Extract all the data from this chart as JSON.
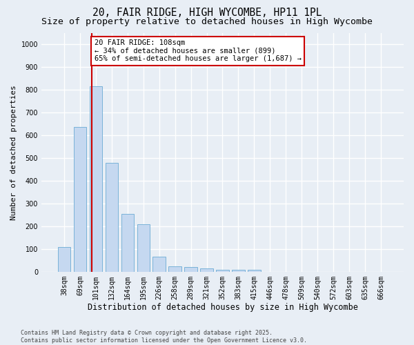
{
  "title": "20, FAIR RIDGE, HIGH WYCOMBE, HP11 1PL",
  "subtitle": "Size of property relative to detached houses in High Wycombe",
  "xlabel": "Distribution of detached houses by size in High Wycombe",
  "ylabel": "Number of detached properties",
  "categories": [
    "38sqm",
    "69sqm",
    "101sqm",
    "132sqm",
    "164sqm",
    "195sqm",
    "226sqm",
    "258sqm",
    "289sqm",
    "321sqm",
    "352sqm",
    "383sqm",
    "415sqm",
    "446sqm",
    "478sqm",
    "509sqm",
    "540sqm",
    "572sqm",
    "603sqm",
    "635sqm",
    "666sqm"
  ],
  "values": [
    110,
    635,
    815,
    480,
    255,
    210,
    65,
    25,
    20,
    15,
    10,
    8,
    10,
    0,
    0,
    0,
    0,
    0,
    0,
    0,
    0
  ],
  "bar_color": "#c5d8f0",
  "bar_edge_color": "#6aaad4",
  "vline_bin_index": 2,
  "vline_color": "#cc0000",
  "annotation_text": "20 FAIR RIDGE: 108sqm\n← 34% of detached houses are smaller (899)\n65% of semi-detached houses are larger (1,687) →",
  "annotation_box_color": "#ffffff",
  "annotation_box_edge": "#cc0000",
  "ylim": [
    0,
    1050
  ],
  "yticks": [
    0,
    100,
    200,
    300,
    400,
    500,
    600,
    700,
    800,
    900,
    1000
  ],
  "bg_color": "#e8eef5",
  "grid_color": "#ffffff",
  "footer": "Contains HM Land Registry data © Crown copyright and database right 2025.\nContains public sector information licensed under the Open Government Licence v3.0.",
  "title_fontsize": 10.5,
  "subtitle_fontsize": 9.5,
  "xlabel_fontsize": 8.5,
  "ylabel_fontsize": 8,
  "tick_fontsize": 7,
  "annotation_fontsize": 7.5,
  "footer_fontsize": 6
}
